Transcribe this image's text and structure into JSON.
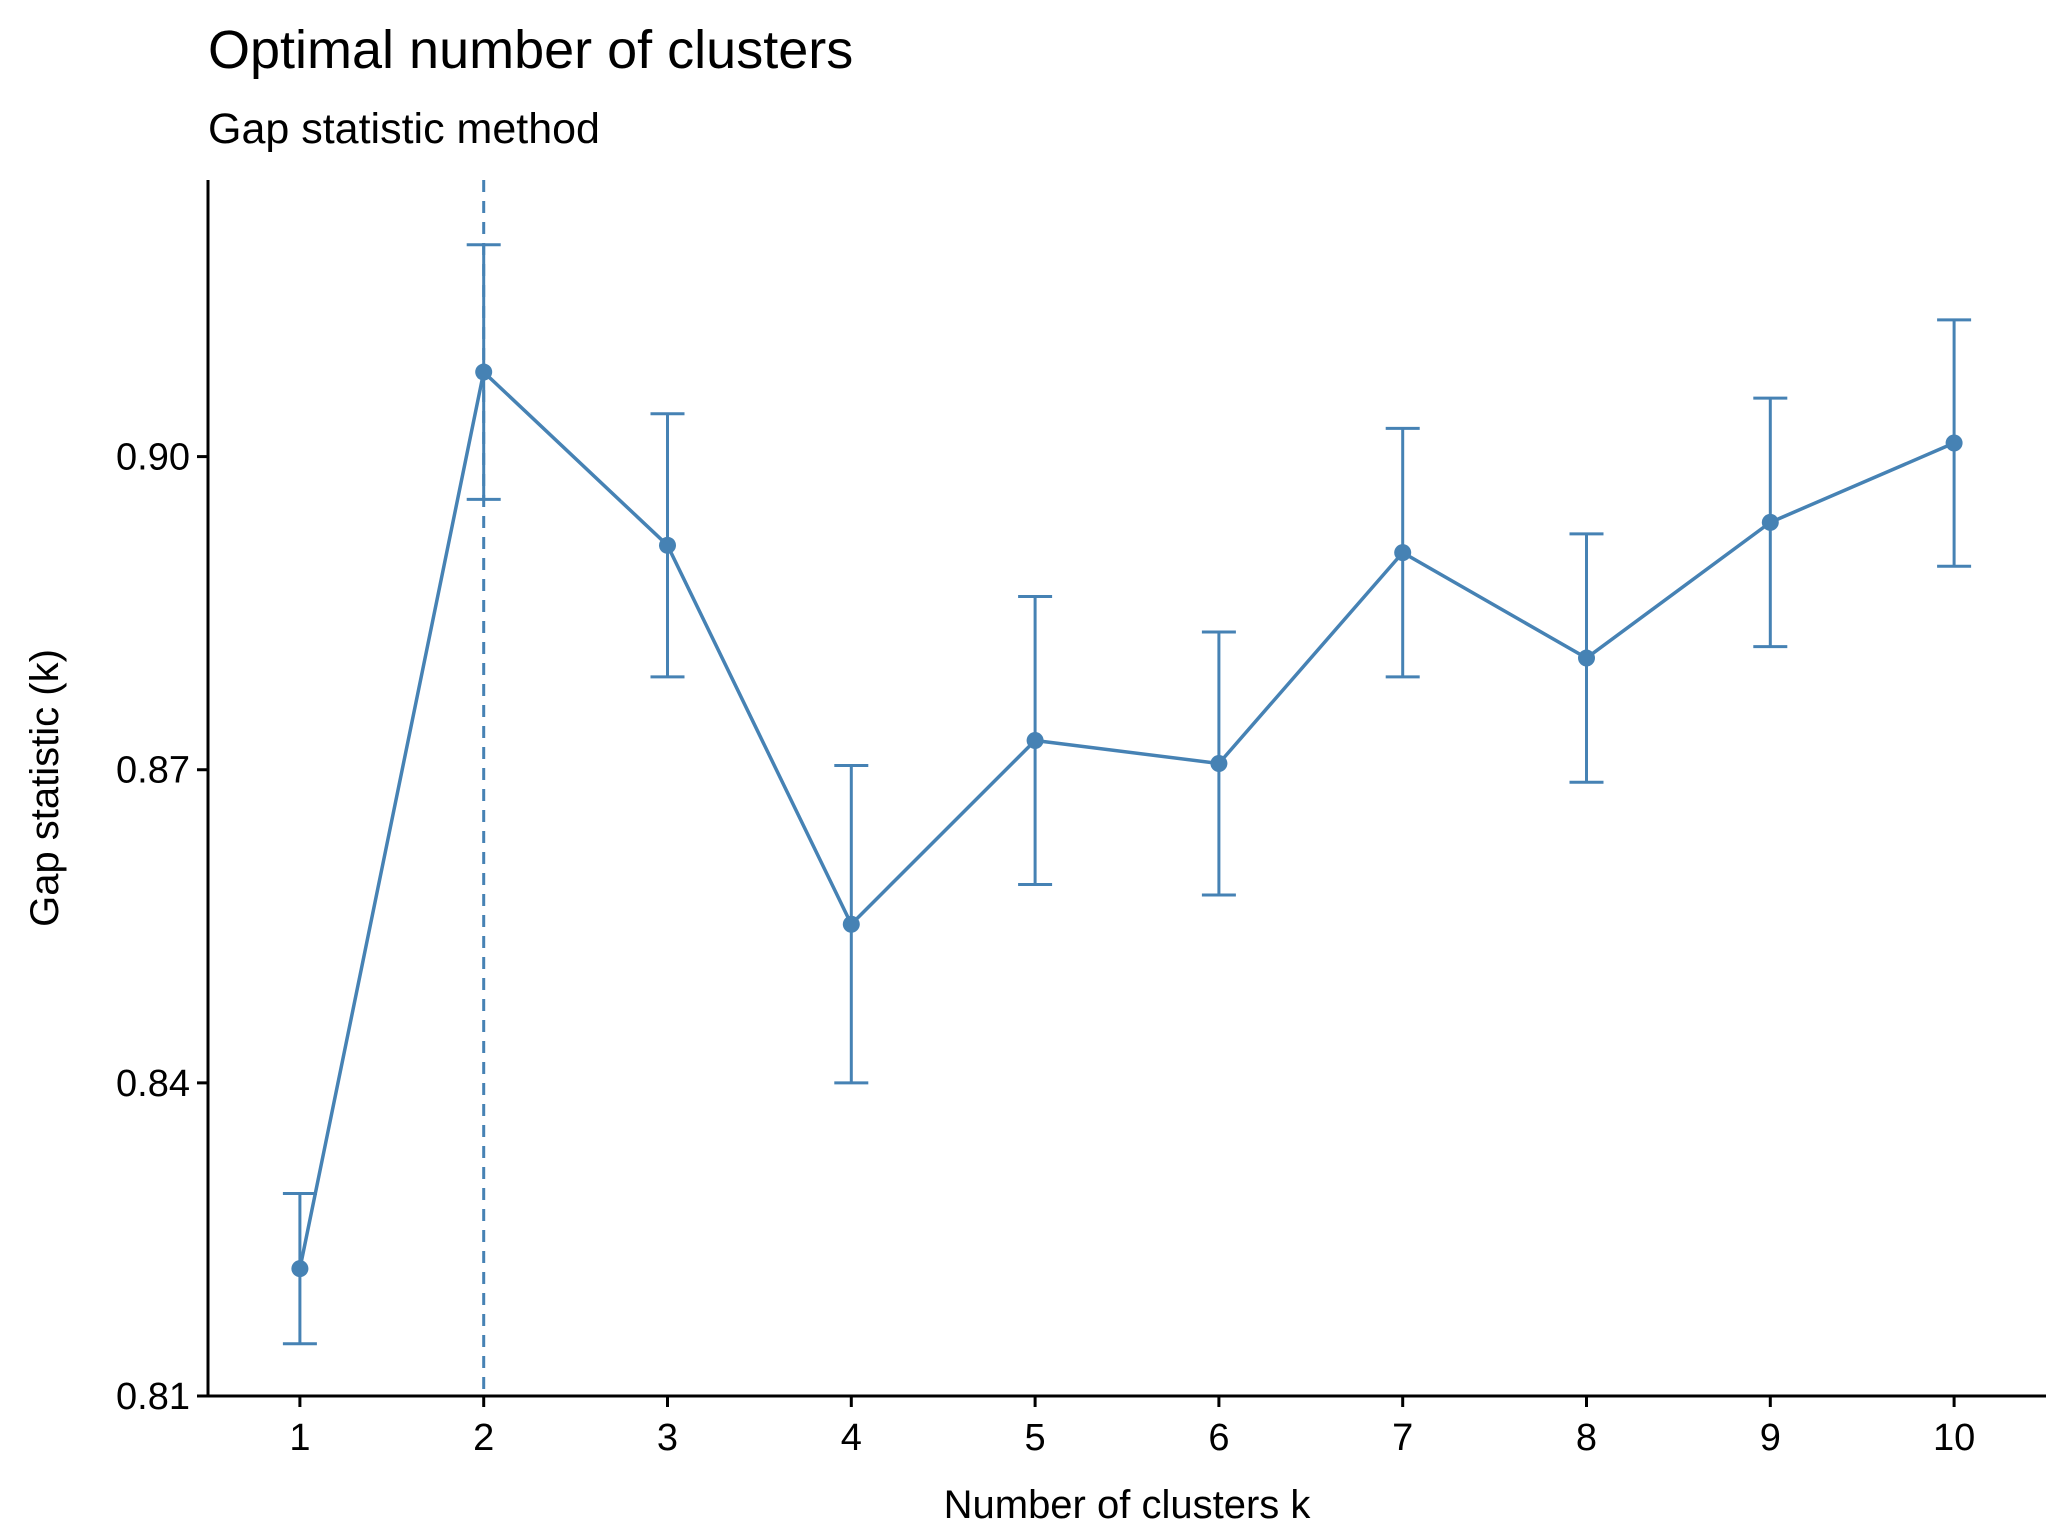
{
  "chart_data": {
    "type": "line",
    "title": "Optimal number of clusters",
    "subtitle": "Gap statistic method",
    "xlabel": "Number of clusters k",
    "ylabel": "Gap statistic (k)",
    "x": [
      1,
      2,
      3,
      4,
      5,
      6,
      7,
      8,
      9,
      10
    ],
    "x_tick_labels": [
      "1",
      "2",
      "3",
      "4",
      "5",
      "6",
      "7",
      "8",
      "9",
      "10"
    ],
    "y_ticks": [
      0.81,
      0.84,
      0.87,
      0.9
    ],
    "y_tick_labels": [
      "0.81",
      "0.84",
      "0.87",
      "0.90"
    ],
    "xlim": [
      0.5,
      10.5
    ],
    "ylim": [
      0.81,
      0.9265
    ],
    "series": [
      {
        "values": [
          0.8222,
          0.9081,
          0.8915,
          0.8552,
          0.8728,
          0.8706,
          0.8908,
          0.8807,
          0.8937,
          0.9013
        ],
        "lower": [
          0.815,
          0.8959,
          0.8789,
          0.84,
          0.859,
          0.858,
          0.8789,
          0.8688,
          0.8818,
          0.8895
        ],
        "upper": [
          0.8294,
          0.9203,
          0.9041,
          0.8704,
          0.8866,
          0.8832,
          0.9027,
          0.8926,
          0.9056,
          0.9131
        ]
      }
    ],
    "optimal_k": 2,
    "color": "#4682B4",
    "grid": false,
    "legend": "none"
  }
}
